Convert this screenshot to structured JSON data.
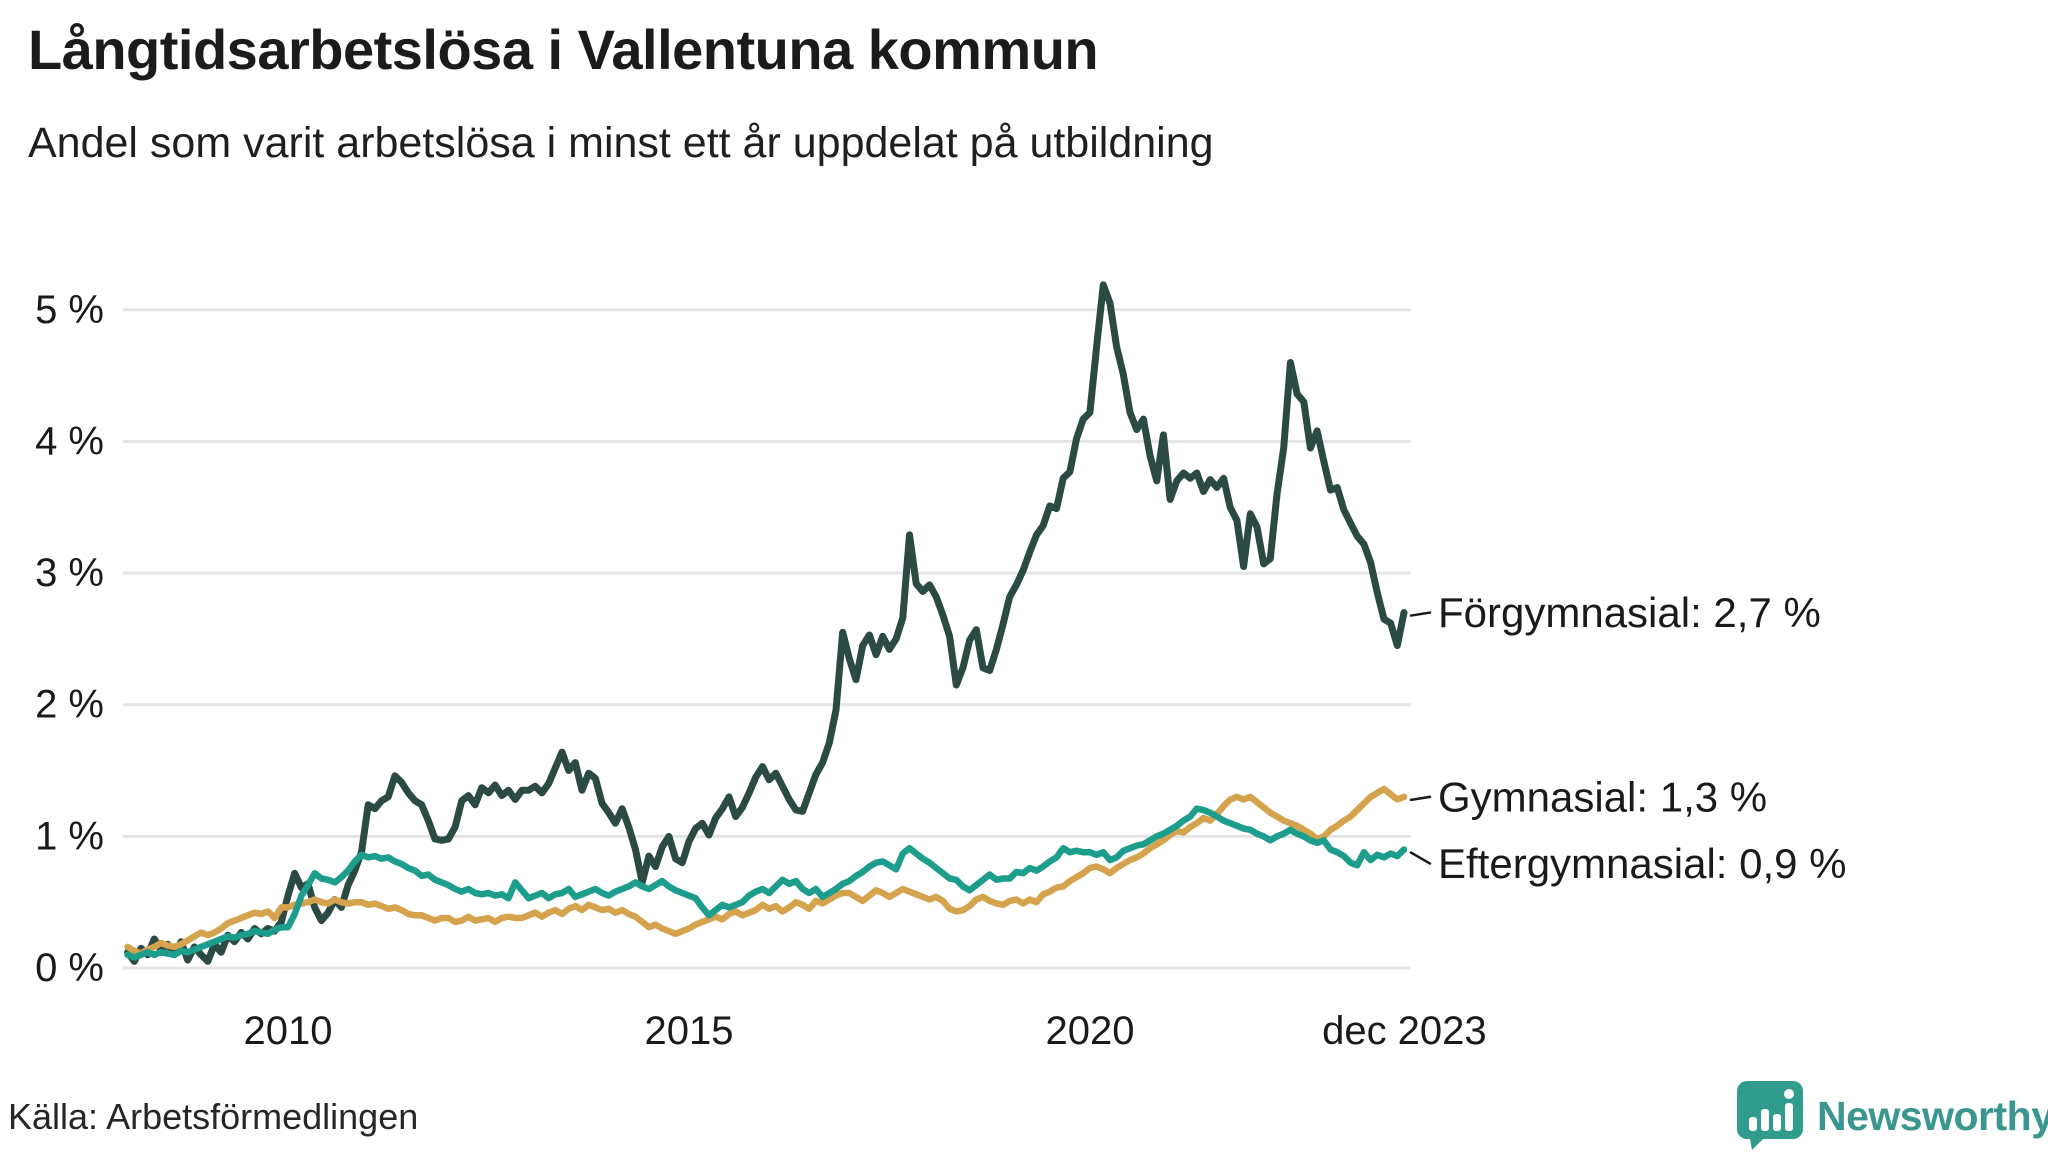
{
  "header": {
    "title": "Långtidsarbetslösa i Vallentuna kommun",
    "subtitle": "Andel som varit arbetslösa i minst ett år uppdelat på utbildning"
  },
  "footer": {
    "source": "Källa: Arbetsförmedlingen",
    "brand": "Newsworthy"
  },
  "colors": {
    "forgymnasial": "#2c4a44",
    "gymnasial": "#d5a34e",
    "eftergymnasial": "#1d9d8b",
    "gridline": "#e5e5e5",
    "text": "#1a1a1a",
    "brand_teal": "#3a968e",
    "logo_icon": "#2f9c8e"
  },
  "chart_data": {
    "type": "line",
    "title": "Långtidsarbetslösa i Vallentuna kommun",
    "subtitle": "Andel som varit arbetslösa i minst ett år uppdelat på utbildning",
    "xlabel": "",
    "ylabel": "",
    "grid": true,
    "legend_position": "right-of-line-end",
    "ylim": [
      0,
      5.35
    ],
    "y_ticks": [
      {
        "value": 0,
        "label": "0 %"
      },
      {
        "value": 1,
        "label": "1 %"
      },
      {
        "value": 2,
        "label": "2 %"
      },
      {
        "value": 3,
        "label": "3 %"
      },
      {
        "value": 4,
        "label": "4 %"
      },
      {
        "value": 5,
        "label": "5 %"
      }
    ],
    "x_ticks": [
      {
        "year": 2010.0,
        "label": "2010"
      },
      {
        "year": 2015.0,
        "label": "2015"
      },
      {
        "year": 2020.0,
        "label": "2020"
      },
      {
        "year": 2023.92,
        "label": "dec 2023"
      }
    ],
    "x_start_year": 2008.0,
    "x_end_year": 2023.917,
    "points_per_year": 12,
    "series": [
      {
        "id": "forgymnasial",
        "name": "Förgymnasial",
        "label": "Förgymnasial: 2,7 %",
        "end_value": "2,7 %",
        "color": "#2c4a44",
        "stroke_width": 7,
        "values": [
          0.12,
          0.05,
          0.15,
          0.1,
          0.22,
          0.14,
          0.18,
          0.1,
          0.2,
          0.06,
          0.16,
          0.1,
          0.05,
          0.18,
          0.12,
          0.25,
          0.2,
          0.27,
          0.22,
          0.3,
          0.26,
          0.3,
          0.28,
          0.35,
          0.55,
          0.72,
          0.61,
          0.64,
          0.46,
          0.36,
          0.42,
          0.52,
          0.46,
          0.63,
          0.74,
          0.88,
          1.24,
          1.21,
          1.27,
          1.3,
          1.46,
          1.41,
          1.33,
          1.27,
          1.24,
          1.12,
          0.98,
          0.97,
          0.98,
          1.07,
          1.27,
          1.31,
          1.24,
          1.37,
          1.33,
          1.39,
          1.31,
          1.35,
          1.28,
          1.35,
          1.35,
          1.38,
          1.33,
          1.4,
          1.52,
          1.64,
          1.5,
          1.56,
          1.35,
          1.48,
          1.44,
          1.25,
          1.18,
          1.1,
          1.21,
          1.07,
          0.9,
          0.65,
          0.85,
          0.77,
          0.92,
          1.0,
          0.83,
          0.8,
          0.96,
          1.06,
          1.1,
          1.01,
          1.14,
          1.21,
          1.3,
          1.15,
          1.22,
          1.33,
          1.45,
          1.53,
          1.43,
          1.48,
          1.38,
          1.28,
          1.2,
          1.19,
          1.33,
          1.47,
          1.56,
          1.71,
          1.96,
          2.55,
          2.35,
          2.19,
          2.45,
          2.53,
          2.38,
          2.52,
          2.42,
          2.5,
          2.66,
          3.29,
          2.92,
          2.86,
          2.91,
          2.82,
          2.68,
          2.52,
          2.15,
          2.28,
          2.49,
          2.57,
          2.28,
          2.26,
          2.42,
          2.61,
          2.82,
          2.91,
          3.02,
          3.16,
          3.29,
          3.36,
          3.51,
          3.49,
          3.72,
          3.77,
          4.02,
          4.17,
          4.22,
          4.72,
          5.19,
          5.05,
          4.72,
          4.51,
          4.22,
          4.09,
          4.17,
          3.89,
          3.7,
          4.05,
          3.56,
          3.7,
          3.76,
          3.72,
          3.76,
          3.62,
          3.71,
          3.65,
          3.72,
          3.5,
          3.4,
          3.05,
          3.45,
          3.35,
          3.07,
          3.11,
          3.6,
          3.95,
          4.6,
          4.36,
          4.3,
          3.95,
          4.08,
          3.85,
          3.63,
          3.65,
          3.48,
          3.38,
          3.28,
          3.22,
          3.08,
          2.85,
          2.65,
          2.62,
          2.45,
          2.7
        ]
      },
      {
        "id": "gymnasial",
        "name": "Gymnasial",
        "label": "Gymnasial: 1,3 %",
        "end_value": "1,3 %",
        "color": "#d5a34e",
        "stroke_width": 6.5,
        "values": [
          0.16,
          0.13,
          0.11,
          0.14,
          0.16,
          0.19,
          0.17,
          0.16,
          0.18,
          0.21,
          0.24,
          0.27,
          0.25,
          0.27,
          0.3,
          0.34,
          0.36,
          0.38,
          0.4,
          0.42,
          0.41,
          0.43,
          0.38,
          0.46,
          0.46,
          0.48,
          0.49,
          0.5,
          0.52,
          0.5,
          0.49,
          0.52,
          0.5,
          0.49,
          0.5,
          0.5,
          0.48,
          0.49,
          0.47,
          0.45,
          0.46,
          0.44,
          0.41,
          0.4,
          0.4,
          0.38,
          0.36,
          0.38,
          0.38,
          0.35,
          0.36,
          0.39,
          0.36,
          0.37,
          0.38,
          0.35,
          0.38,
          0.39,
          0.38,
          0.38,
          0.4,
          0.42,
          0.39,
          0.42,
          0.44,
          0.41,
          0.45,
          0.47,
          0.44,
          0.48,
          0.46,
          0.44,
          0.45,
          0.42,
          0.44,
          0.41,
          0.39,
          0.35,
          0.31,
          0.33,
          0.3,
          0.28,
          0.26,
          0.28,
          0.3,
          0.33,
          0.35,
          0.37,
          0.39,
          0.37,
          0.41,
          0.43,
          0.4,
          0.42,
          0.44,
          0.48,
          0.45,
          0.47,
          0.43,
          0.46,
          0.5,
          0.48,
          0.45,
          0.51,
          0.49,
          0.52,
          0.55,
          0.57,
          0.57,
          0.54,
          0.51,
          0.55,
          0.59,
          0.57,
          0.54,
          0.57,
          0.6,
          0.58,
          0.56,
          0.54,
          0.52,
          0.54,
          0.51,
          0.45,
          0.43,
          0.44,
          0.47,
          0.52,
          0.54,
          0.51,
          0.49,
          0.48,
          0.51,
          0.52,
          0.49,
          0.52,
          0.5,
          0.56,
          0.58,
          0.61,
          0.62,
          0.66,
          0.69,
          0.72,
          0.76,
          0.77,
          0.75,
          0.72,
          0.76,
          0.79,
          0.82,
          0.84,
          0.87,
          0.91,
          0.94,
          0.97,
          1.01,
          1.04,
          1.03,
          1.07,
          1.1,
          1.14,
          1.12,
          1.17,
          1.23,
          1.28,
          1.3,
          1.28,
          1.3,
          1.26,
          1.22,
          1.18,
          1.15,
          1.12,
          1.1,
          1.08,
          1.05,
          1.02,
          0.98,
          1.0,
          1.05,
          1.08,
          1.12,
          1.15,
          1.2,
          1.25,
          1.3,
          1.33,
          1.36,
          1.32,
          1.28,
          1.3
        ]
      },
      {
        "id": "eftergymnasial",
        "name": "Eftergymnasial",
        "label": "Eftergymnasial: 0,9 %",
        "end_value": "0,9 %",
        "color": "#1d9d8b",
        "stroke_width": 6.5,
        "values": [
          0.1,
          0.08,
          0.1,
          0.12,
          0.1,
          0.12,
          0.11,
          0.1,
          0.13,
          0.12,
          0.14,
          0.16,
          0.18,
          0.2,
          0.22,
          0.24,
          0.23,
          0.25,
          0.26,
          0.28,
          0.27,
          0.26,
          0.29,
          0.31,
          0.31,
          0.41,
          0.55,
          0.63,
          0.72,
          0.68,
          0.67,
          0.65,
          0.69,
          0.74,
          0.81,
          0.86,
          0.84,
          0.85,
          0.83,
          0.84,
          0.81,
          0.79,
          0.76,
          0.74,
          0.7,
          0.71,
          0.67,
          0.65,
          0.63,
          0.6,
          0.58,
          0.6,
          0.57,
          0.56,
          0.57,
          0.55,
          0.56,
          0.53,
          0.65,
          0.59,
          0.53,
          0.55,
          0.57,
          0.53,
          0.56,
          0.57,
          0.6,
          0.54,
          0.56,
          0.58,
          0.6,
          0.57,
          0.55,
          0.58,
          0.6,
          0.62,
          0.65,
          0.62,
          0.6,
          0.63,
          0.66,
          0.62,
          0.59,
          0.57,
          0.55,
          0.53,
          0.46,
          0.4,
          0.44,
          0.48,
          0.46,
          0.48,
          0.5,
          0.55,
          0.58,
          0.6,
          0.57,
          0.62,
          0.67,
          0.64,
          0.66,
          0.6,
          0.57,
          0.6,
          0.54,
          0.57,
          0.6,
          0.64,
          0.66,
          0.7,
          0.73,
          0.77,
          0.8,
          0.81,
          0.78,
          0.75,
          0.87,
          0.91,
          0.87,
          0.83,
          0.8,
          0.76,
          0.72,
          0.68,
          0.67,
          0.62,
          0.59,
          0.63,
          0.67,
          0.71,
          0.67,
          0.68,
          0.68,
          0.73,
          0.72,
          0.76,
          0.74,
          0.77,
          0.81,
          0.84,
          0.91,
          0.88,
          0.89,
          0.88,
          0.88,
          0.86,
          0.88,
          0.82,
          0.84,
          0.89,
          0.91,
          0.93,
          0.94,
          0.97,
          1.0,
          1.02,
          1.05,
          1.08,
          1.12,
          1.15,
          1.21,
          1.2,
          1.18,
          1.15,
          1.12,
          1.1,
          1.08,
          1.06,
          1.05,
          1.02,
          1.0,
          0.97,
          1.0,
          1.02,
          1.05,
          1.02,
          1.0,
          0.97,
          0.95,
          0.97,
          0.9,
          0.88,
          0.85,
          0.8,
          0.78,
          0.88,
          0.82,
          0.86,
          0.84,
          0.87,
          0.85,
          0.9
        ]
      }
    ]
  }
}
